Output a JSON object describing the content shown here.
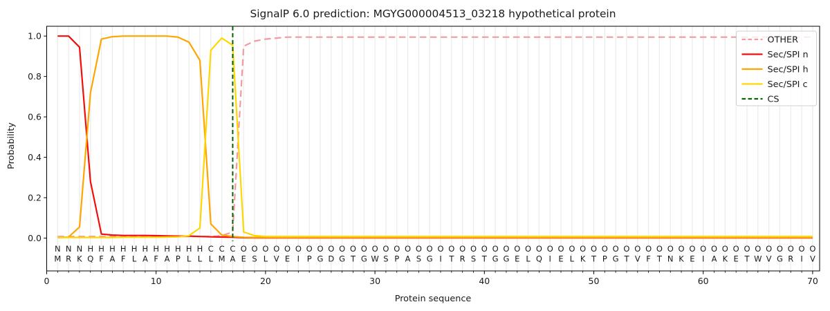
{
  "chart_data": {
    "type": "line",
    "title": "SignalP 6.0 prediction: MGYG000004513_03218 hypothetical protein",
    "xlabel": "Protein sequence",
    "ylabel": "Probability",
    "xticks": [
      0,
      10,
      20,
      30,
      40,
      50,
      60,
      70
    ],
    "yticks": [
      0.0,
      0.2,
      0.4,
      0.6,
      0.8,
      1.0
    ],
    "xlim": [
      0,
      70.6
    ],
    "ylim": [
      0.0,
      1.0
    ],
    "grid": "vertical-per-residue",
    "legend_position": "upper right",
    "x_start": 1,
    "cs_position": 17,
    "sequence": [
      "M",
      "R",
      "K",
      "Q",
      "F",
      "A",
      "F",
      "L",
      "A",
      "F",
      "A",
      "P",
      "L",
      "L",
      "L",
      "M",
      "A",
      "E",
      "S",
      "L",
      "V",
      "E",
      "I",
      "P",
      "G",
      "D",
      "G",
      "T",
      "G",
      "W",
      "S",
      "P",
      "A",
      "S",
      "G",
      "I",
      "T",
      "R",
      "S",
      "T",
      "G",
      "G",
      "E",
      "L",
      "Q",
      "I",
      "E",
      "L",
      "K",
      "T",
      "P",
      "G",
      "T",
      "V",
      "F",
      "T",
      "N",
      "K",
      "E",
      "I",
      "A",
      "K",
      "E",
      "T",
      "W",
      "V",
      "G",
      "R",
      "I",
      "V"
    ],
    "states": [
      "N",
      "N",
      "N",
      "H",
      "H",
      "H",
      "H",
      "H",
      "H",
      "H",
      "H",
      "H",
      "H",
      "H",
      "C",
      "C",
      "C",
      "O",
      "O",
      "O",
      "O",
      "O",
      "O",
      "O",
      "O",
      "O",
      "O",
      "O",
      "O",
      "O",
      "O",
      "O",
      "O",
      "O",
      "O",
      "O",
      "O",
      "O",
      "O",
      "O",
      "O",
      "O",
      "O",
      "O",
      "O",
      "O",
      "O",
      "O",
      "O",
      "O",
      "O",
      "O",
      "O",
      "O",
      "O",
      "O",
      "O",
      "O",
      "O",
      "O",
      "O",
      "O",
      "O",
      "O",
      "O",
      "O",
      "O",
      "O",
      "O",
      "O"
    ],
    "state_colors": {
      "N": "#ee1111",
      "H": "#ffa500",
      "C": "#ffd700",
      "O": "#8a8a8a"
    },
    "series": [
      {
        "name": "OTHER",
        "style": "dashed",
        "color": "#f29a9e",
        "values": [
          0.008,
          0.008,
          0.008,
          0.008,
          0.008,
          0.008,
          0.008,
          0.008,
          0.008,
          0.008,
          0.008,
          0.008,
          0.008,
          0.008,
          0.008,
          0.012,
          0.03,
          0.95,
          0.975,
          0.985,
          0.99,
          0.995,
          0.995,
          0.995,
          0.995,
          0.995,
          0.995,
          0.995,
          0.995,
          0.995,
          0.995,
          0.995,
          0.995,
          0.995,
          0.995,
          0.995,
          0.995,
          0.995,
          0.995,
          0.995,
          0.995,
          0.995,
          0.995,
          0.995,
          0.995,
          0.995,
          0.995,
          0.995,
          0.995,
          0.995,
          0.995,
          0.995,
          0.995,
          0.995,
          0.995,
          0.995,
          0.995,
          0.995,
          0.995,
          0.995,
          0.995,
          0.995,
          0.995,
          0.995,
          0.995,
          0.995,
          0.995,
          0.995,
          0.995,
          0.995
        ]
      },
      {
        "name": "Sec/SPI n",
        "style": "solid",
        "color": "#f20d0d",
        "values": [
          1.0,
          1.0,
          0.945,
          0.28,
          0.02,
          0.015,
          0.013,
          0.013,
          0.013,
          0.012,
          0.011,
          0.01,
          0.01,
          0.008,
          0.006,
          0.005,
          0.004,
          0.002,
          0.001,
          0.001,
          0.001,
          0.001,
          0.001,
          0.001,
          0.001,
          0.001,
          0.001,
          0.001,
          0.001,
          0.001,
          0.001,
          0.001,
          0.001,
          0.001,
          0.001,
          0.001,
          0.001,
          0.001,
          0.001,
          0.001,
          0.001,
          0.001,
          0.001,
          0.001,
          0.001,
          0.001,
          0.001,
          0.001,
          0.001,
          0.001,
          0.001,
          0.001,
          0.001,
          0.001,
          0.001,
          0.001,
          0.001,
          0.001,
          0.001,
          0.001,
          0.001,
          0.001,
          0.001,
          0.001,
          0.001,
          0.001,
          0.001,
          0.001,
          0.001,
          0.001
        ]
      },
      {
        "name": "Sec/SPI h",
        "style": "solid",
        "color": "#ffa500",
        "values": [
          0.002,
          0.005,
          0.055,
          0.72,
          0.985,
          0.997,
          1.0,
          1.0,
          1.0,
          1.0,
          1.0,
          0.995,
          0.97,
          0.88,
          0.07,
          0.015,
          0.008,
          0.004,
          0.003,
          0.003,
          0.003,
          0.003,
          0.003,
          0.003,
          0.003,
          0.003,
          0.003,
          0.003,
          0.003,
          0.003,
          0.003,
          0.003,
          0.003,
          0.003,
          0.003,
          0.003,
          0.003,
          0.003,
          0.003,
          0.003,
          0.003,
          0.003,
          0.003,
          0.003,
          0.003,
          0.003,
          0.003,
          0.003,
          0.003,
          0.003,
          0.003,
          0.003,
          0.003,
          0.003,
          0.003,
          0.003,
          0.003,
          0.003,
          0.003,
          0.003,
          0.003,
          0.003,
          0.003,
          0.003,
          0.003,
          0.003,
          0.003,
          0.003,
          0.003,
          0.003
        ]
      },
      {
        "name": "Sec/SPI c",
        "style": "solid",
        "color": "#ffd700",
        "values": [
          0.003,
          0.003,
          0.003,
          0.003,
          0.003,
          0.003,
          0.004,
          0.004,
          0.004,
          0.004,
          0.005,
          0.006,
          0.012,
          0.05,
          0.93,
          0.99,
          0.955,
          0.03,
          0.012,
          0.008,
          0.008,
          0.008,
          0.008,
          0.008,
          0.008,
          0.008,
          0.008,
          0.008,
          0.008,
          0.008,
          0.008,
          0.008,
          0.008,
          0.008,
          0.008,
          0.008,
          0.008,
          0.008,
          0.008,
          0.008,
          0.008,
          0.008,
          0.008,
          0.008,
          0.008,
          0.008,
          0.008,
          0.008,
          0.008,
          0.008,
          0.008,
          0.008,
          0.008,
          0.008,
          0.008,
          0.008,
          0.008,
          0.008,
          0.008,
          0.008,
          0.008,
          0.008,
          0.008,
          0.008,
          0.008,
          0.008,
          0.008,
          0.008,
          0.008,
          0.008
        ]
      }
    ],
    "cs_line": {
      "label": "CS",
      "style": "dashed",
      "color": "#006400"
    },
    "legend": [
      {
        "label": "OTHER",
        "style": "dashed",
        "color": "#f29a9e"
      },
      {
        "label": "Sec/SPI n",
        "style": "solid",
        "color": "#f20d0d"
      },
      {
        "label": "Sec/SPI h",
        "style": "solid",
        "color": "#ffa500"
      },
      {
        "label": "Sec/SPI c",
        "style": "solid",
        "color": "#ffd700"
      },
      {
        "label": "CS",
        "style": "dashed",
        "color": "#006400"
      }
    ],
    "colors": {
      "grid": "#ececec",
      "spine": "#000000",
      "sequence_text": "#2b2b2b"
    }
  }
}
